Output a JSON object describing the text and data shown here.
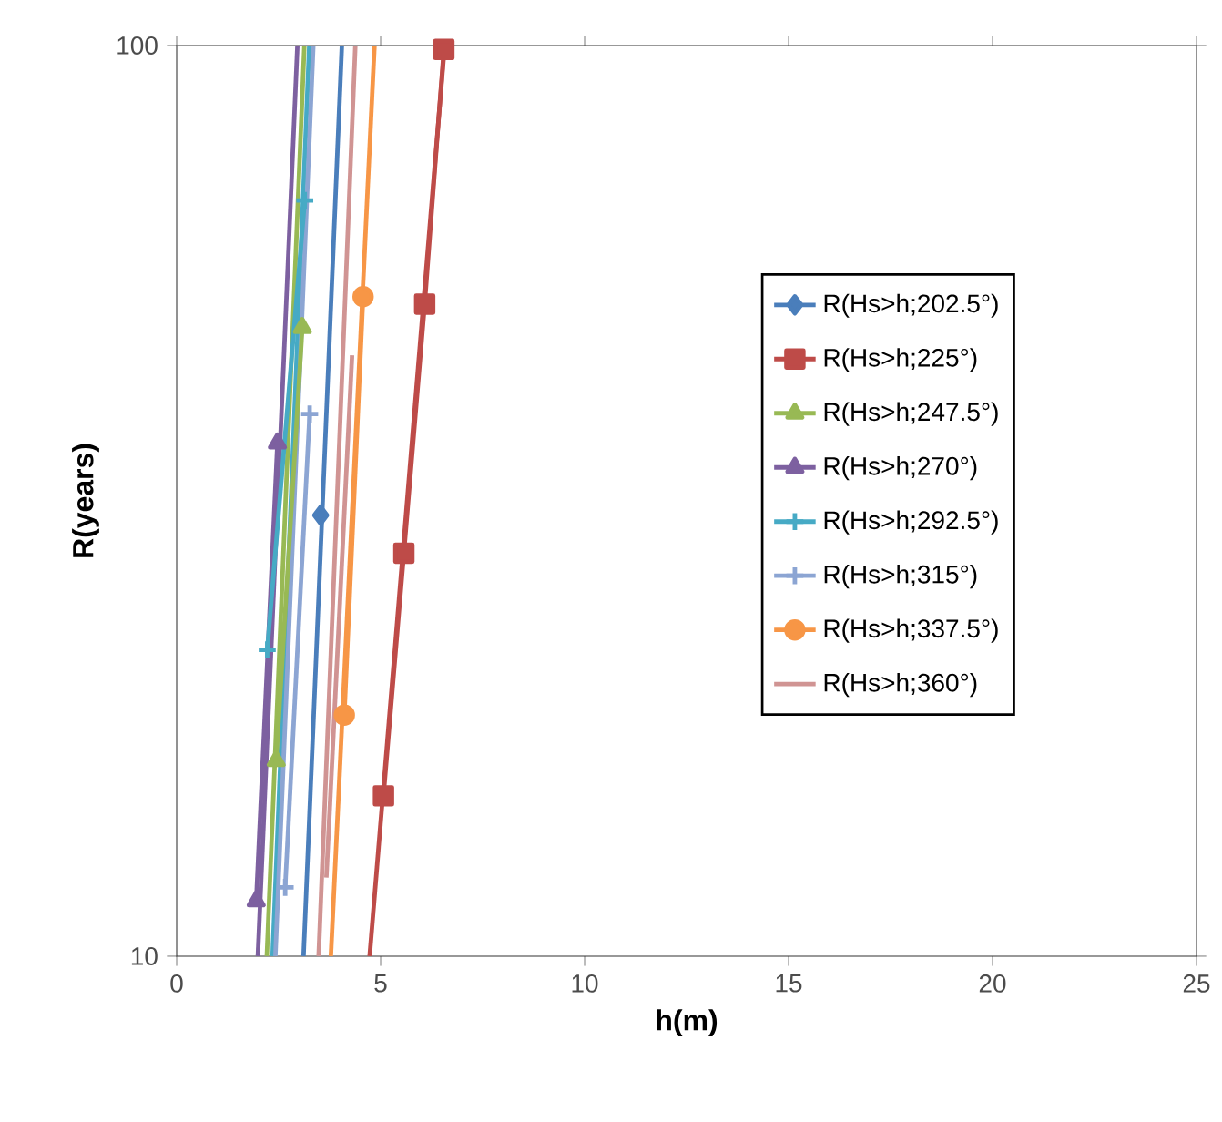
{
  "chart_data": {
    "type": "line",
    "xlabel": "h(m)",
    "ylabel": "R(years)",
    "log": "y",
    "xlim": [
      0,
      25
    ],
    "ylim": [
      10,
      100
    ],
    "xticks": [
      0,
      5,
      10,
      15,
      20,
      25
    ],
    "yticks": [
      10,
      100
    ],
    "grid": false,
    "legend": "right",
    "series": [
      {
        "type": "line",
        "marker": "none",
        "color": "#4a7ebb",
        "x": [
          3.11,
          4.05
        ],
        "values": [
          10,
          100
        ]
      },
      {
        "type": "line",
        "marker": "none",
        "color": "#be4b48",
        "x": [
          4.73,
          6.57
        ],
        "values": [
          10,
          100
        ]
      },
      {
        "type": "line",
        "marker": "none",
        "color": "#98b954",
        "x": [
          2.21,
          3.13
        ],
        "values": [
          10,
          100
        ]
      },
      {
        "type": "line",
        "marker": "none",
        "color": "#7d60a0",
        "x": [
          1.99,
          2.96
        ],
        "values": [
          10,
          100
        ]
      },
      {
        "type": "line",
        "marker": "none",
        "color": "#46aac5",
        "x": [
          2.35,
          3.25
        ],
        "values": [
          10,
          100
        ]
      },
      {
        "type": "line",
        "marker": "none",
        "color": "#8ca5d3",
        "x": [
          2.42,
          3.35
        ],
        "values": [
          10,
          100
        ]
      },
      {
        "type": "line",
        "marker": "none",
        "color": "#f79646",
        "x": [
          3.78,
          4.85
        ],
        "values": [
          10,
          100
        ]
      },
      {
        "type": "line",
        "marker": "none",
        "color": "#d09493",
        "x": [
          3.48,
          4.38
        ],
        "values": [
          10,
          100
        ]
      },
      {
        "name": "R(Hs>h;202.5°)",
        "marker": "diamond",
        "color": "#4a7ebb",
        "x": [
          3.53
        ],
        "values": [
          30.5
        ]
      },
      {
        "name": "R(Hs>h;225°)",
        "marker": "square",
        "color": "#be4b48",
        "x": [
          5.07,
          5.57,
          6.08,
          6.55
        ],
        "values": [
          15,
          27.7,
          52,
          99
        ]
      },
      {
        "name": "R(Hs>h;247.5°)",
        "marker": "triangle",
        "color": "#98b954",
        "x": [
          2.44,
          3.08
        ],
        "values": [
          16.4,
          49
        ]
      },
      {
        "name": "R(Hs>h;270°)",
        "marker": "triangle",
        "color": "#7d60a0",
        "x": [
          1.95,
          2.47
        ],
        "values": [
          11.5,
          36.6
        ]
      },
      {
        "name": "R(Hs>h;292.5°)",
        "marker": "cross",
        "color": "#46aac5",
        "x": [
          2.22,
          3.14
        ],
        "values": [
          21.7,
          67.6
        ]
      },
      {
        "name": "R(Hs>h;315°)",
        "marker": "cross",
        "color": "#8ca5d3",
        "x": [
          2.66,
          3.26
        ],
        "values": [
          11.9,
          39.4
        ]
      },
      {
        "name": "R(Hs>h;337.5°)",
        "marker": "circle",
        "color": "#f79646",
        "x": [
          4.11,
          4.57
        ],
        "values": [
          18.4,
          53
        ]
      },
      {
        "name": "R(Hs>h;360°)",
        "marker": "none",
        "color": "#d09493",
        "x": [
          3.67,
          4.3
        ],
        "values": [
          12.2,
          45.7
        ]
      }
    ]
  }
}
